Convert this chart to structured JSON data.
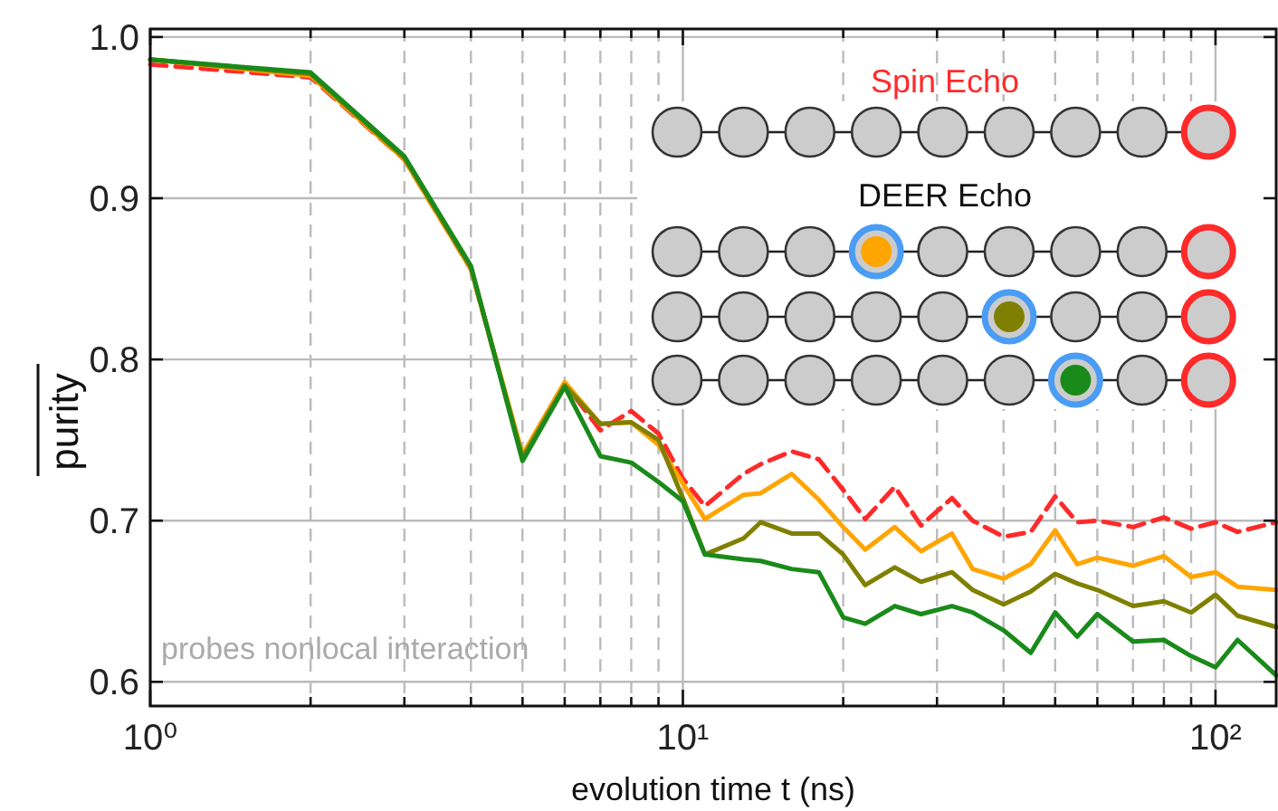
{
  "chart_data": {
    "type": "line",
    "xlabel": "evolution time t (ns)",
    "ylabel": "purity",
    "log": "x",
    "xlim": [
      1,
      130
    ],
    "ylim": [
      0.585,
      1.005
    ],
    "xticks": [
      {
        "value": 1,
        "label": "10⁰"
      },
      {
        "value": 2,
        "label": null
      },
      {
        "value": 3,
        "label": null
      },
      {
        "value": 4,
        "label": null
      },
      {
        "value": 5,
        "label": null
      },
      {
        "value": 6,
        "label": null
      },
      {
        "value": 7,
        "label": null
      },
      {
        "value": 8,
        "label": null
      },
      {
        "value": 9,
        "label": null
      },
      {
        "value": 10,
        "label": "10¹"
      },
      {
        "value": 20,
        "label": null
      },
      {
        "value": 30,
        "label": null
      },
      {
        "value": 40,
        "label": null
      },
      {
        "value": 50,
        "label": null
      },
      {
        "value": 60,
        "label": null
      },
      {
        "value": 70,
        "label": null
      },
      {
        "value": 80,
        "label": null
      },
      {
        "value": 90,
        "label": null
      },
      {
        "value": 100,
        "label": "10²"
      }
    ],
    "yticks": [
      0.6,
      0.7,
      0.8,
      0.9,
      {
        "value": 1,
        "label": "1.0"
      }
    ],
    "grid": true,
    "marker": "none",
    "x": [
      1,
      2,
      3,
      4,
      5,
      6,
      7,
      8,
      9,
      10,
      11,
      13,
      14,
      16,
      18,
      20,
      22,
      25,
      28,
      32,
      35,
      40,
      45,
      50,
      55,
      60,
      70,
      80,
      90,
      100,
      110,
      130
    ],
    "series": [
      {
        "color": "#ff2a2a",
        "line_style": "dashed",
        "values": [
          0.983,
          0.975,
          0.924,
          0.856,
          0.74,
          0.785,
          0.756,
          0.768,
          0.754,
          0.726,
          0.709,
          0.729,
          0.735,
          0.743,
          0.738,
          0.719,
          0.701,
          0.721,
          0.697,
          0.714,
          0.7,
          0.69,
          0.693,
          0.715,
          0.699,
          0.7,
          0.696,
          0.702,
          0.695,
          0.699,
          0.693,
          0.699
        ]
      },
      {
        "color": "#ffa500",
        "line_style": "solid",
        "values": [
          0.986,
          0.976,
          0.924,
          0.856,
          0.741,
          0.786,
          0.76,
          0.761,
          0.747,
          0.723,
          0.701,
          0.716,
          0.717,
          0.729,
          0.713,
          0.696,
          0.682,
          0.696,
          0.681,
          0.692,
          0.67,
          0.664,
          0.673,
          0.694,
          0.673,
          0.677,
          0.672,
          0.678,
          0.665,
          0.668,
          0.659,
          0.657
        ]
      },
      {
        "color": "#808000",
        "line_style": "solid",
        "values": [
          0.986,
          0.977,
          0.925,
          0.857,
          0.739,
          0.784,
          0.76,
          0.761,
          0.75,
          0.714,
          0.679,
          0.689,
          0.699,
          0.692,
          0.692,
          0.679,
          0.66,
          0.671,
          0.662,
          0.668,
          0.657,
          0.648,
          0.656,
          0.667,
          0.661,
          0.657,
          0.647,
          0.65,
          0.643,
          0.654,
          0.641,
          0.634
        ]
      },
      {
        "color": "#1a8a1a",
        "line_style": "solid",
        "values": [
          0.986,
          0.978,
          0.926,
          0.858,
          0.737,
          0.783,
          0.74,
          0.736,
          0.724,
          0.712,
          0.679,
          0.676,
          0.675,
          0.67,
          0.668,
          0.64,
          0.636,
          0.647,
          0.642,
          0.647,
          0.643,
          0.632,
          0.618,
          0.643,
          0.628,
          0.642,
          0.625,
          0.626,
          0.616,
          0.609,
          0.626,
          0.604
        ]
      }
    ],
    "annotations": [
      "Spin Echo",
      "DEER Echo",
      "probes nonlocal interaction"
    ]
  }
}
